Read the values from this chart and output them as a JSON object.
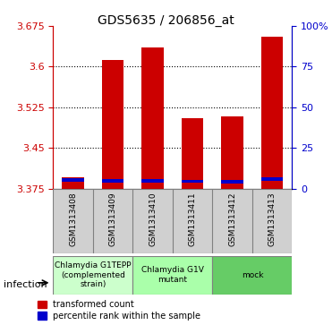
{
  "title": "GDS5635 / 206856_at",
  "samples": [
    "GSM1313408",
    "GSM1313409",
    "GSM1313410",
    "GSM1313411",
    "GSM1313412",
    "GSM1313413"
  ],
  "red_values": [
    3.395,
    3.613,
    3.635,
    3.504,
    3.508,
    3.655
  ],
  "blue_values": [
    3.388,
    3.386,
    3.386,
    3.385,
    3.384,
    3.389
  ],
  "blue_heights": [
    0.006,
    0.006,
    0.006,
    0.006,
    0.006,
    0.006
  ],
  "ymin": 3.375,
  "ymax": 3.675,
  "yticks": [
    3.375,
    3.45,
    3.525,
    3.6,
    3.675
  ],
  "ytick_labels": [
    "3.375",
    "3.45",
    "3.525",
    "3.6",
    "3.675"
  ],
  "right_yticks": [
    0,
    25,
    50,
    75,
    100
  ],
  "right_ytick_labels": [
    "0",
    "25",
    "50",
    "75",
    "100%"
  ],
  "groups": [
    {
      "label": "Chlamydia G1TEPP\n(complemented\nstrain)",
      "start": 0,
      "end": 2,
      "color": "#ccffcc"
    },
    {
      "label": "Chlamydia G1V\nmutant",
      "start": 2,
      "end": 4,
      "color": "#aaffaa"
    },
    {
      "label": "mock",
      "start": 4,
      "end": 6,
      "color": "#66cc66"
    }
  ],
  "bar_color_red": "#cc0000",
  "bar_color_blue": "#0000cc",
  "bar_width": 0.55,
  "infection_label": "infection",
  "legend_red": "transformed count",
  "legend_blue": "percentile rank within the sample",
  "axis_color_left": "#cc0000",
  "axis_color_right": "#0000cc",
  "bg_color": "#d0d0d0"
}
